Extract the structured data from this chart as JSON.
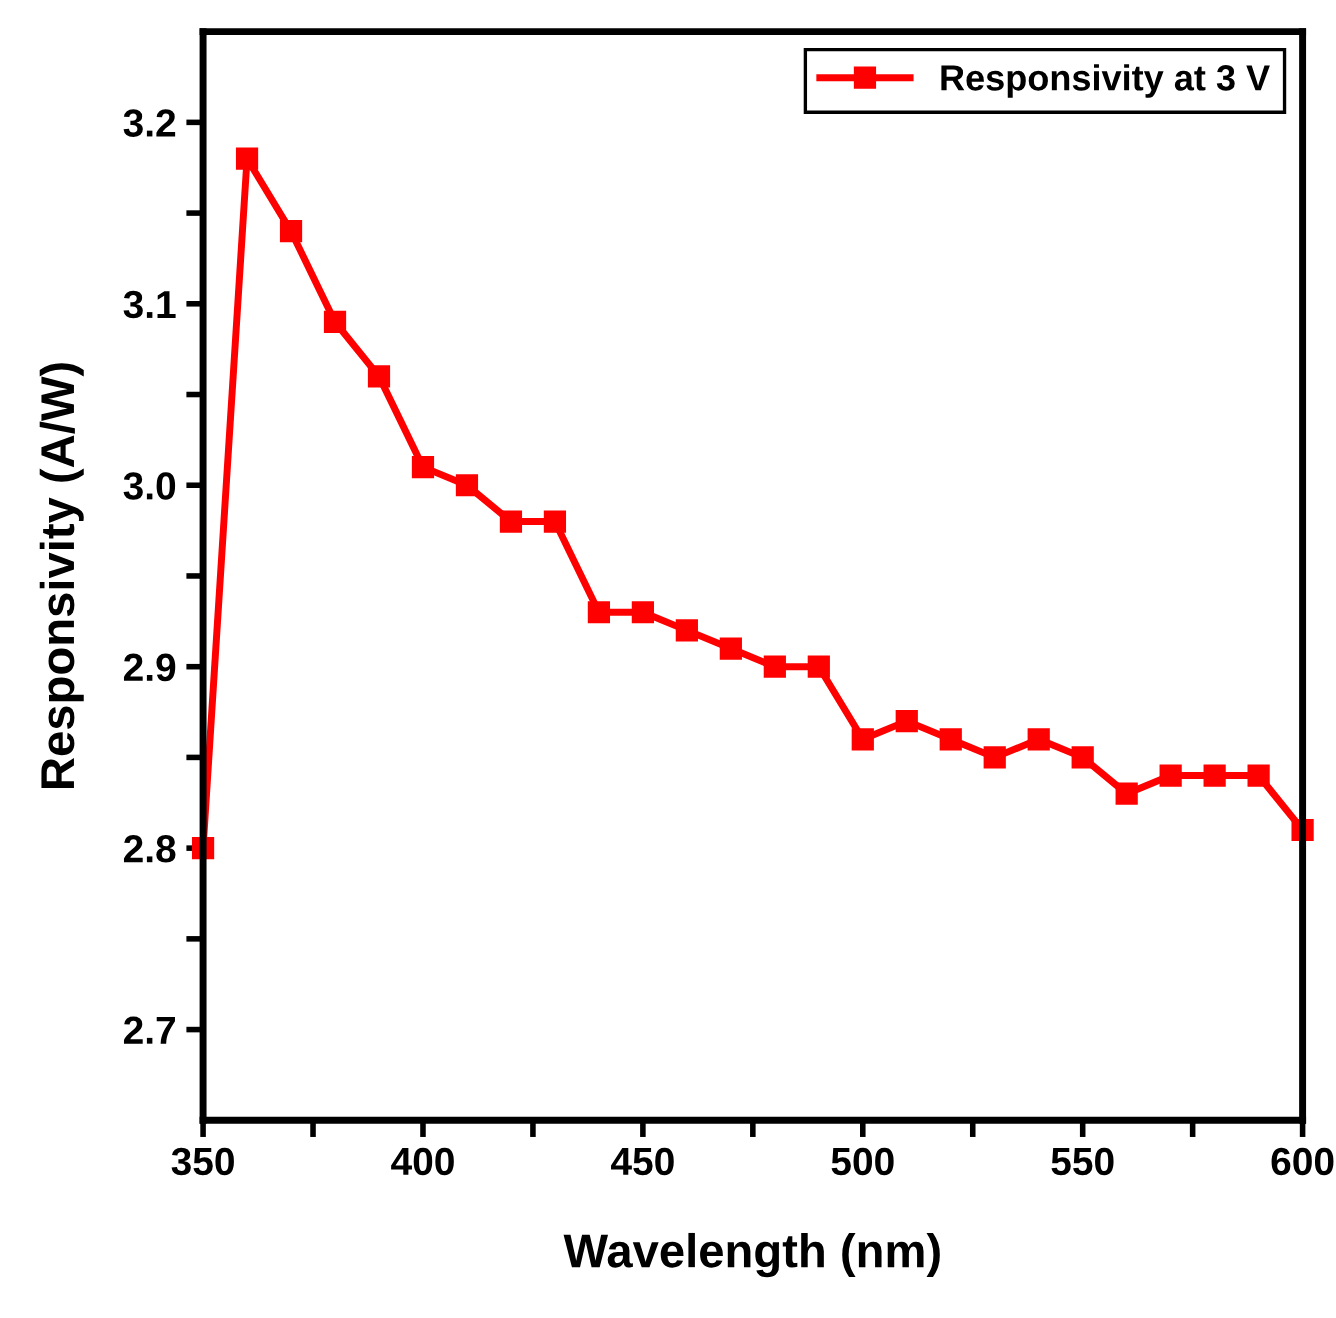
{
  "chart_data": {
    "type": "line",
    "xlabel": "Wavelength (nm)",
    "ylabel": "Responsivity (A/W)",
    "x": [
      350,
      360,
      370,
      380,
      390,
      400,
      410,
      420,
      430,
      440,
      450,
      460,
      470,
      480,
      490,
      500,
      510,
      520,
      530,
      540,
      550,
      560,
      570,
      580,
      590,
      600
    ],
    "series": [
      {
        "name": "Responsivity at 3 V",
        "color": "#ff0000",
        "values": [
          2.8,
          3.18,
          3.14,
          3.09,
          3.06,
          3.01,
          3.0,
          2.98,
          2.98,
          2.93,
          2.93,
          2.92,
          2.91,
          2.9,
          2.9,
          2.86,
          2.87,
          2.86,
          2.85,
          2.86,
          2.85,
          2.83,
          2.84,
          2.84,
          2.84,
          2.81
        ]
      }
    ],
    "xlim": [
      350,
      600
    ],
    "xticks": [
      350,
      {
        "value": 375,
        "label": null
      },
      400,
      {
        "value": 425,
        "label": null
      },
      450,
      {
        "value": 475,
        "label": null
      },
      500,
      {
        "value": 525,
        "label": null
      },
      550,
      {
        "value": 575,
        "label": null
      },
      600
    ],
    "ylim": [
      2.65,
      3.25
    ],
    "yticks": [
      2.7,
      {
        "value": 2.75,
        "label": null
      },
      2.8,
      {
        "value": 2.85,
        "label": null
      },
      2.9,
      {
        "value": 2.95,
        "label": null
      },
      {
        "value": 3.0,
        "label": "3.0"
      },
      {
        "value": 3.05,
        "label": null
      },
      3.1,
      {
        "value": 3.15,
        "label": null
      },
      3.2
    ],
    "marker": "square",
    "line_style": "solid",
    "grid": false,
    "legend": "top right"
  }
}
